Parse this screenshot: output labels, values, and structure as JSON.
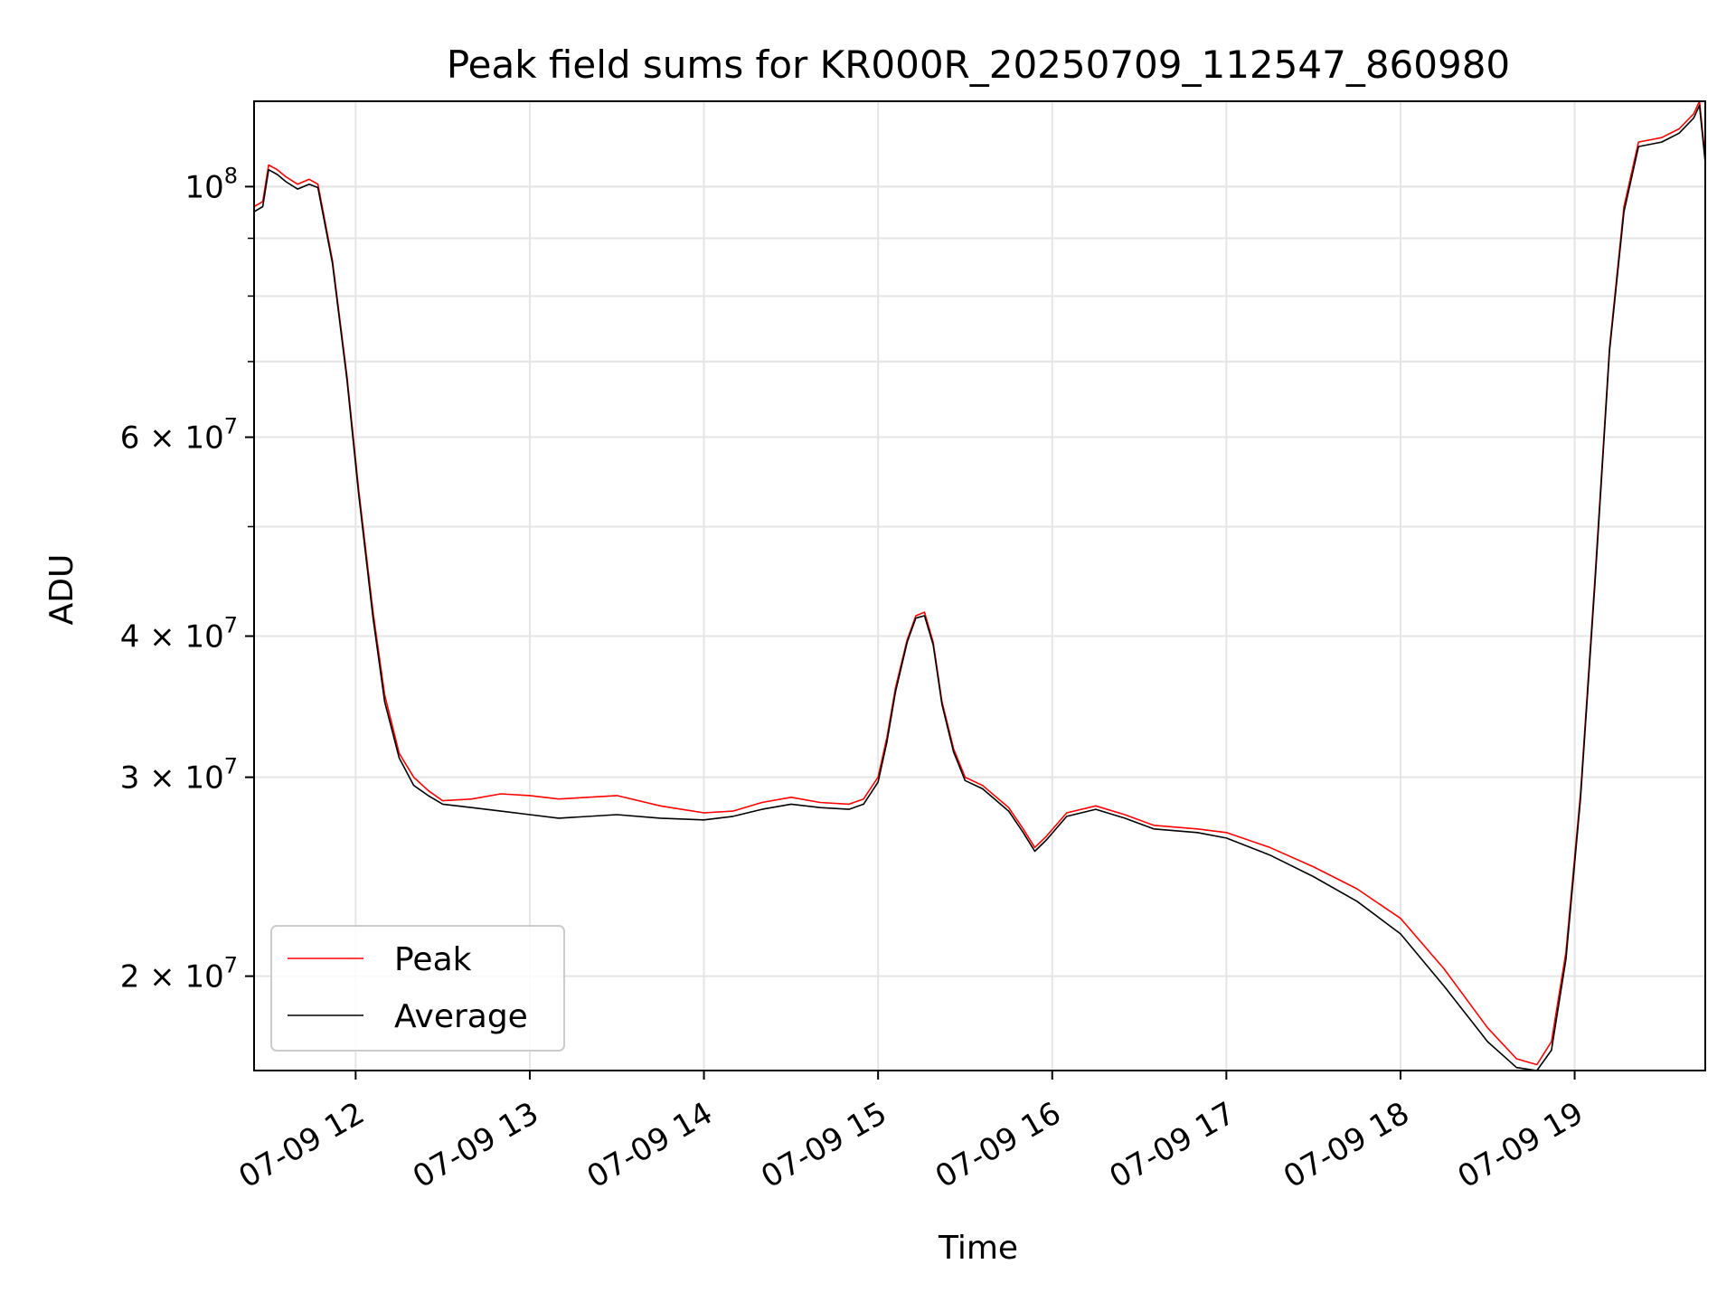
{
  "chart_data": {
    "type": "line",
    "title": "Peak field sums for KR000R_20250709_112547_860980",
    "xlabel": "Time",
    "ylabel": "ADU",
    "y_scale": "log",
    "xlim": [
      "07-09 11:25",
      "07-09 19:45"
    ],
    "ylim": [
      16500000,
      119000000
    ],
    "grid": true,
    "legend_position": "lower-left",
    "x_ticks": [
      "07-09 12",
      "07-09 13",
      "07-09 14",
      "07-09 15",
      "07-09 16",
      "07-09 17",
      "07-09 18",
      "07-09 19"
    ],
    "y_ticks": [
      {
        "mantissa": "2",
        "exponent": "7"
      },
      {
        "mantissa": "3",
        "exponent": "7"
      },
      {
        "mantissa": "4",
        "exponent": "7"
      },
      {
        "mantissa": "6",
        "exponent": "7"
      },
      {
        "mantissa": "",
        "exponent": "8"
      }
    ],
    "series": [
      {
        "name": "Peak",
        "color": "#ff0000",
        "points": [
          [
            "07-09 11:25",
            96000000
          ],
          [
            "07-09 11:28",
            97000000
          ],
          [
            "07-09 11:30",
            104500000
          ],
          [
            "07-09 11:33",
            103500000
          ],
          [
            "07-09 11:36",
            102000000
          ],
          [
            "07-09 11:40",
            100500000
          ],
          [
            "07-09 11:44",
            101500000
          ],
          [
            "07-09 11:47",
            100500000
          ],
          [
            "07-09 11:52",
            86000000
          ],
          [
            "07-09 11:57",
            68000000
          ],
          [
            "07-09 12:01",
            54000000
          ],
          [
            "07-09 12:06",
            42000000
          ],
          [
            "07-09 12:10",
            35500000
          ],
          [
            "07-09 12:15",
            31500000
          ],
          [
            "07-09 12:20",
            30000000
          ],
          [
            "07-09 12:25",
            29200000
          ],
          [
            "07-09 12:30",
            28600000
          ],
          [
            "07-09 12:40",
            28700000
          ],
          [
            "07-09 12:50",
            29000000
          ],
          [
            "07-09 13:00",
            28900000
          ],
          [
            "07-09 13:10",
            28700000
          ],
          [
            "07-09 13:30",
            28900000
          ],
          [
            "07-09 13:45",
            28300000
          ],
          [
            "07-09 14:00",
            27900000
          ],
          [
            "07-09 14:10",
            28000000
          ],
          [
            "07-09 14:20",
            28500000
          ],
          [
            "07-09 14:30",
            28800000
          ],
          [
            "07-09 14:40",
            28500000
          ],
          [
            "07-09 14:50",
            28400000
          ],
          [
            "07-09 14:55",
            28700000
          ],
          [
            "07-09 15:00",
            30000000
          ],
          [
            "07-09 15:03",
            32500000
          ],
          [
            "07-09 15:06",
            36000000
          ],
          [
            "07-09 15:10",
            39700000
          ],
          [
            "07-09 15:13",
            41700000
          ],
          [
            "07-09 15:16",
            42000000
          ],
          [
            "07-09 15:19",
            39500000
          ],
          [
            "07-09 15:22",
            35000000
          ],
          [
            "07-09 15:26",
            31800000
          ],
          [
            "07-09 15:30",
            30000000
          ],
          [
            "07-09 15:36",
            29500000
          ],
          [
            "07-09 15:45",
            28200000
          ],
          [
            "07-09 15:50",
            27000000
          ],
          [
            "07-09 15:54",
            26000000
          ],
          [
            "07-09 15:58",
            26600000
          ],
          [
            "07-09 16:05",
            27900000
          ],
          [
            "07-09 16:15",
            28300000
          ],
          [
            "07-09 16:25",
            27800000
          ],
          [
            "07-09 16:35",
            27200000
          ],
          [
            "07-09 16:50",
            27000000
          ],
          [
            "07-09 17:00",
            26800000
          ],
          [
            "07-09 17:15",
            26000000
          ],
          [
            "07-09 17:30",
            25000000
          ],
          [
            "07-09 17:45",
            23900000
          ],
          [
            "07-09 18:00",
            22500000
          ],
          [
            "07-09 18:15",
            20300000
          ],
          [
            "07-09 18:30",
            18000000
          ],
          [
            "07-09 18:40",
            16900000
          ],
          [
            "07-09 18:47",
            16700000
          ],
          [
            "07-09 18:52",
            17500000
          ],
          [
            "07-09 18:57",
            21000000
          ],
          [
            "07-09 19:02",
            29000000
          ],
          [
            "07-09 19:07",
            45000000
          ],
          [
            "07-09 19:12",
            72000000
          ],
          [
            "07-09 19:17",
            96000000
          ],
          [
            "07-09 19:22",
            109500000
          ],
          [
            "07-09 19:30",
            110500000
          ],
          [
            "07-09 19:36",
            112500000
          ],
          [
            "07-09 19:41",
            116000000
          ],
          [
            "07-09 19:43",
            119000000
          ],
          [
            "07-09 19:45",
            106000000
          ]
        ]
      },
      {
        "name": "Average",
        "color": "#000000",
        "points": [
          [
            "07-09 11:25",
            95000000
          ],
          [
            "07-09 11:28",
            96000000
          ],
          [
            "07-09 11:30",
            103500000
          ],
          [
            "07-09 11:33",
            102500000
          ],
          [
            "07-09 11:36",
            101000000
          ],
          [
            "07-09 11:40",
            99500000
          ],
          [
            "07-09 11:44",
            100500000
          ],
          [
            "07-09 11:47",
            99800000
          ],
          [
            "07-09 11:52",
            85500000
          ],
          [
            "07-09 11:57",
            67500000
          ],
          [
            "07-09 12:01",
            53500000
          ],
          [
            "07-09 12:06",
            41500000
          ],
          [
            "07-09 12:10",
            35000000
          ],
          [
            "07-09 12:15",
            31200000
          ],
          [
            "07-09 12:20",
            29500000
          ],
          [
            "07-09 12:25",
            28900000
          ],
          [
            "07-09 12:30",
            28400000
          ],
          [
            "07-09 12:40",
            28200000
          ],
          [
            "07-09 12:50",
            28000000
          ],
          [
            "07-09 13:00",
            27800000
          ],
          [
            "07-09 13:10",
            27600000
          ],
          [
            "07-09 13:30",
            27800000
          ],
          [
            "07-09 13:45",
            27600000
          ],
          [
            "07-09 14:00",
            27500000
          ],
          [
            "07-09 14:10",
            27700000
          ],
          [
            "07-09 14:20",
            28100000
          ],
          [
            "07-09 14:30",
            28400000
          ],
          [
            "07-09 14:40",
            28200000
          ],
          [
            "07-09 14:50",
            28100000
          ],
          [
            "07-09 14:55",
            28400000
          ],
          [
            "07-09 15:00",
            29700000
          ],
          [
            "07-09 15:03",
            32200000
          ],
          [
            "07-09 15:06",
            35700000
          ],
          [
            "07-09 15:10",
            39500000
          ],
          [
            "07-09 15:13",
            41500000
          ],
          [
            "07-09 15:16",
            41700000
          ],
          [
            "07-09 15:19",
            39300000
          ],
          [
            "07-09 15:22",
            34800000
          ],
          [
            "07-09 15:26",
            31600000
          ],
          [
            "07-09 15:30",
            29800000
          ],
          [
            "07-09 15:36",
            29300000
          ],
          [
            "07-09 15:45",
            28000000
          ],
          [
            "07-09 15:50",
            26800000
          ],
          [
            "07-09 15:54",
            25800000
          ],
          [
            "07-09 15:58",
            26400000
          ],
          [
            "07-09 16:05",
            27700000
          ],
          [
            "07-09 16:15",
            28100000
          ],
          [
            "07-09 16:25",
            27600000
          ],
          [
            "07-09 16:35",
            27000000
          ],
          [
            "07-09 16:50",
            26800000
          ],
          [
            "07-09 17:00",
            26500000
          ],
          [
            "07-09 17:15",
            25600000
          ],
          [
            "07-09 17:30",
            24500000
          ],
          [
            "07-09 17:45",
            23300000
          ],
          [
            "07-09 18:00",
            21800000
          ],
          [
            "07-09 18:15",
            19600000
          ],
          [
            "07-09 18:30",
            17500000
          ],
          [
            "07-09 18:40",
            16600000
          ],
          [
            "07-09 18:47",
            16500000
          ],
          [
            "07-09 18:52",
            17200000
          ],
          [
            "07-09 18:57",
            20700000
          ],
          [
            "07-09 19:02",
            28700000
          ],
          [
            "07-09 19:07",
            44500000
          ],
          [
            "07-09 19:12",
            71500000
          ],
          [
            "07-09 19:17",
            95000000
          ],
          [
            "07-09 19:22",
            108500000
          ],
          [
            "07-09 19:30",
            109500000
          ],
          [
            "07-09 19:36",
            111500000
          ],
          [
            "07-09 19:41",
            115000000
          ],
          [
            "07-09 19:43",
            118000000
          ],
          [
            "07-09 19:45",
            105000000
          ]
        ]
      }
    ]
  }
}
